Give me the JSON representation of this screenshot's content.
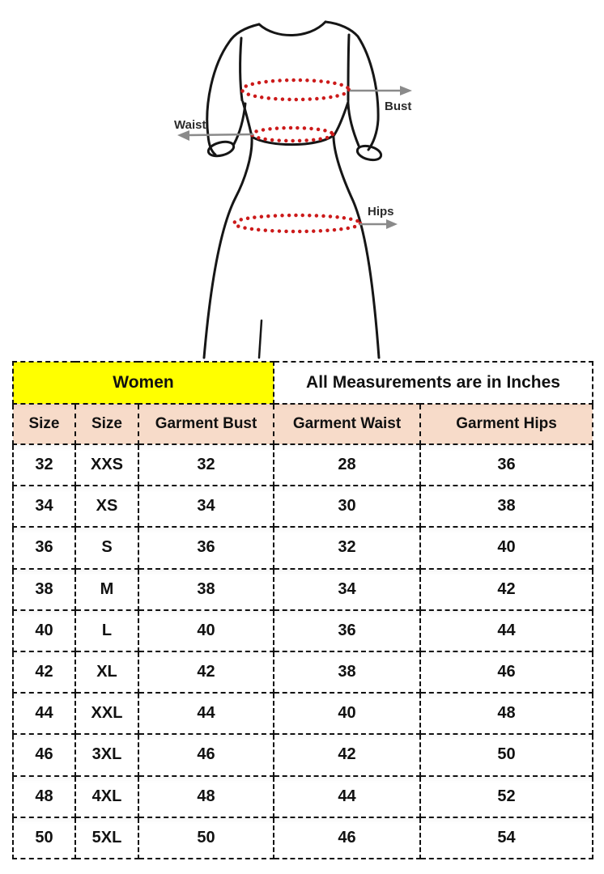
{
  "diagram": {
    "labels": {
      "bust": "Bust",
      "waist": "Waist",
      "hips": "Hips"
    },
    "colors": {
      "outline": "#161616",
      "dots": "#cc1a1a",
      "arrow": "#8a8a8a",
      "label_text": "#2b2b2b"
    }
  },
  "table": {
    "group_header": {
      "left": {
        "label": "Women",
        "bg": "#ffff00"
      },
      "right": {
        "label": "All Measurements are in Inches",
        "bg": "#ffffff"
      }
    },
    "column_header": {
      "bg": "#f7dbc9",
      "columns": [
        "Size",
        "Size",
        "Garment Bust",
        "Garment Waist",
        "Garment Hips"
      ]
    },
    "rows": [
      [
        "32",
        "XXS",
        "32",
        "28",
        "36"
      ],
      [
        "34",
        "XS",
        "34",
        "30",
        "38"
      ],
      [
        "36",
        "S",
        "36",
        "32",
        "40"
      ],
      [
        "38",
        "M",
        "38",
        "34",
        "42"
      ],
      [
        "40",
        "L",
        "40",
        "36",
        "44"
      ],
      [
        "42",
        "XL",
        "42",
        "38",
        "46"
      ],
      [
        "44",
        "XXL",
        "44",
        "40",
        "48"
      ],
      [
        "46",
        "3XL",
        "46",
        "42",
        "50"
      ],
      [
        "48",
        "4XL",
        "48",
        "44",
        "52"
      ],
      [
        "50",
        "5XL",
        "50",
        "46",
        "54"
      ]
    ]
  },
  "chart_data": {
    "type": "table",
    "title": "Women — All Measurements are in Inches",
    "columns": [
      "Size",
      "Size",
      "Garment Bust",
      "Garment Waist",
      "Garment Hips"
    ],
    "rows": [
      [
        32,
        "XXS",
        32,
        28,
        36
      ],
      [
        34,
        "XS",
        34,
        30,
        38
      ],
      [
        36,
        "S",
        36,
        32,
        40
      ],
      [
        38,
        "M",
        38,
        34,
        42
      ],
      [
        40,
        "L",
        40,
        36,
        44
      ],
      [
        42,
        "XL",
        42,
        38,
        46
      ],
      [
        44,
        "XXL",
        44,
        40,
        48
      ],
      [
        46,
        "3XL",
        46,
        42,
        50
      ],
      [
        48,
        "4XL",
        48,
        44,
        52
      ],
      [
        50,
        "5XL",
        50,
        46,
        54
      ]
    ]
  }
}
